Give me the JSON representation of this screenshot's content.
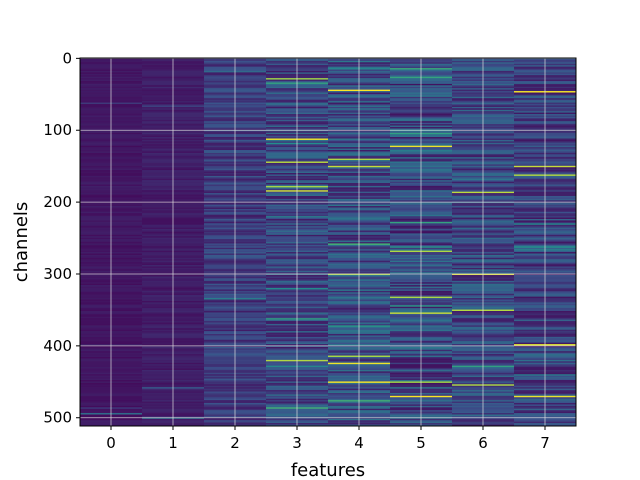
{
  "chart_data": {
    "type": "heatmap",
    "title": "",
    "xlabel": "features",
    "ylabel": "channels",
    "x_ticks": [
      "0",
      "1",
      "2",
      "3",
      "4",
      "5",
      "6",
      "7"
    ],
    "y_ticks": [
      "0",
      "100",
      "200",
      "300",
      "400",
      "500"
    ],
    "xlim": [
      -0.5,
      7.5
    ],
    "ylim": [
      511.5,
      -0.5
    ],
    "grid": true,
    "colormap": "viridis",
    "n_rows": 512,
    "n_cols": 8,
    "column_mean_intensity": [
      0.06,
      0.08,
      0.17,
      0.2,
      0.22,
      0.2,
      0.2,
      0.18
    ],
    "column_variability": [
      0.03,
      0.04,
      0.1,
      0.14,
      0.16,
      0.17,
      0.14,
      0.13
    ],
    "highlights": [
      {
        "column": 3,
        "rows": [
          28,
          113,
          145,
          178,
          185,
          420
        ]
      },
      {
        "column": 4,
        "rows": [
          44,
          140,
          150,
          300,
          415,
          425,
          450
        ]
      },
      {
        "column": 5,
        "rows": [
          122,
          268,
          333,
          355,
          450,
          470
        ]
      },
      {
        "column": 6,
        "rows": [
          187,
          300,
          350,
          455
        ]
      },
      {
        "column": 7,
        "rows": [
          47,
          150,
          162,
          398,
          470
        ]
      }
    ],
    "colors": {
      "low": "#440154",
      "background": "#3b528b",
      "mid": "#21918c",
      "high": "#5ec962",
      "max": "#fde725",
      "grid": "#e0e0e0"
    }
  }
}
